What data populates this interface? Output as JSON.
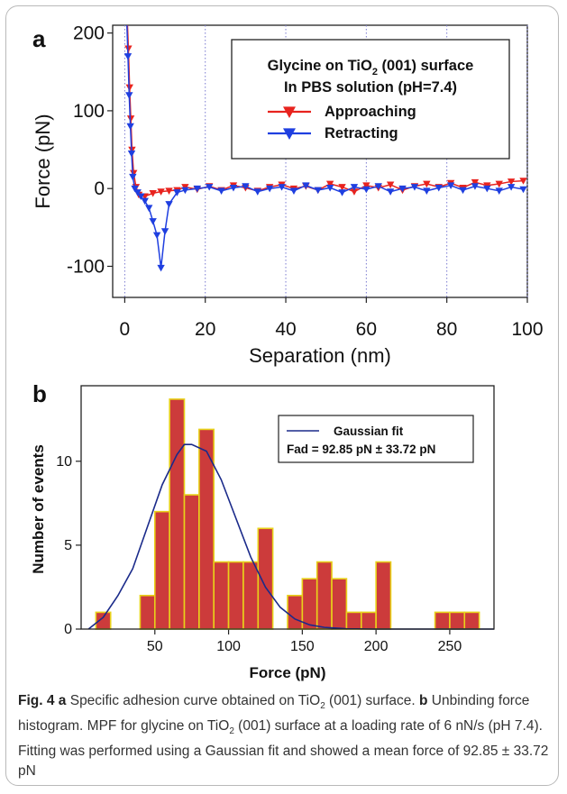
{
  "panel_a": {
    "label": "a",
    "legend_title_line1_pre": "Glycine on TiO",
    "legend_title_line1_sub": "2",
    "legend_title_line1_post": " (001) surface",
    "legend_title_line2": "In PBS solution (pH=7.4)"
  },
  "panel_b": {
    "label": "b",
    "legend_fit": "Gaussian fit",
    "legend_value": "Fad = 92.85 pN ± 33.72 pN"
  },
  "caption": {
    "fig_label": "Fig. 4",
    "a_label": "a",
    "t1": " Specific adhesion curve obtained on TiO",
    "t1_sub": "2",
    "t2": " (001) surface. ",
    "b_label": "b",
    "t3": " Unbinding force histogram. MPF for glycine on TiO",
    "t3_sub": "2",
    "t4": " (001) surface at a loading rate of 6 nN/s (pH 7.4). Fitting was performed using a Gaussian fit and showed a mean force of 92.85 ± 33.72 pN"
  },
  "colors": {
    "approach": "#e8231e",
    "retract": "#1f3fe0",
    "bar_fill": "#cc3b3b",
    "bar_edge": "#e8d21a",
    "fit_line": "#1a2a8a"
  },
  "chart_data": [
    {
      "type": "scatter",
      "xlabel": "Separation (nm)",
      "ylabel": "Force (pN)",
      "xlim": [
        -3,
        100
      ],
      "ylim": [
        -140,
        210
      ],
      "xticks": [
        0,
        20,
        40,
        60,
        80,
        100
      ],
      "yticks": [
        -100,
        0,
        100,
        200
      ],
      "grid": "vertical dotted",
      "legend_position": "top-right",
      "series": [
        {
          "name": "Approaching",
          "marker": "triangle-down",
          "x": [
            0.6,
            0.9,
            1.2,
            1.5,
            1.8,
            2.2,
            2.8,
            3.5,
            5,
            7,
            9,
            11,
            13,
            15,
            18,
            21,
            24,
            27,
            30,
            33,
            36,
            39,
            42,
            45,
            48,
            51,
            54,
            57,
            60,
            63,
            66,
            69,
            72,
            75,
            78,
            81,
            84,
            87,
            90,
            93,
            96,
            99
          ],
          "y": [
            220,
            180,
            130,
            90,
            50,
            20,
            2,
            -8,
            -10,
            -6,
            -4,
            -3,
            -2,
            2,
            -1,
            3,
            -2,
            4,
            1,
            -3,
            2,
            5,
            0,
            3,
            -2,
            6,
            2,
            -4,
            4,
            1,
            5,
            -2,
            3,
            6,
            2,
            7,
            1,
            8,
            4,
            6,
            9,
            10
          ]
        },
        {
          "name": "Retracting",
          "marker": "triangle-down",
          "x": [
            0.5,
            0.8,
            1.1,
            1.4,
            1.7,
            2.0,
            2.5,
            3.2,
            4.0,
            5.0,
            6.0,
            7.0,
            8.0,
            9.0,
            10.0,
            11.0,
            13,
            15,
            18,
            21,
            24,
            27,
            30,
            33,
            36,
            39,
            42,
            45,
            48,
            51,
            54,
            57,
            60,
            63,
            66,
            69,
            72,
            75,
            78,
            81,
            84,
            87,
            90,
            93,
            96,
            99
          ],
          "y": [
            215,
            170,
            120,
            80,
            45,
            15,
            0,
            -5,
            -10,
            -16,
            -25,
            -42,
            -60,
            -102,
            -55,
            -20,
            -5,
            -2,
            0,
            2,
            -3,
            1,
            3,
            -4,
            0,
            2,
            -3,
            4,
            -2,
            1,
            -5,
            2,
            -1,
            3,
            -4,
            0,
            2,
            -3,
            1,
            4,
            -2,
            3,
            0,
            -3,
            2,
            -1
          ]
        }
      ]
    },
    {
      "type": "bar",
      "xlabel": "Force (pN)",
      "ylabel": "Number of events",
      "xlim": [
        0,
        280
      ],
      "ylim": [
        0,
        14.5
      ],
      "xticks": [
        50,
        100,
        150,
        200,
        250
      ],
      "yticks": [
        0,
        5,
        10
      ],
      "grid": "none",
      "legend_position": "top-right",
      "bin_width": 10,
      "bin_starts": [
        10,
        40,
        50,
        60,
        70,
        80,
        90,
        100,
        110,
        120,
        140,
        150,
        160,
        170,
        180,
        190,
        200,
        240,
        250,
        260
      ],
      "values": [
        1,
        2,
        7,
        13.7,
        8,
        11.9,
        4,
        4,
        4,
        6,
        2,
        3,
        4,
        3,
        1,
        1,
        4,
        1,
        1,
        1
      ],
      "series": [
        {
          "name": "Gaussian fit",
          "type": "line",
          "x": [
            5,
            15,
            25,
            35,
            45,
            55,
            65,
            70,
            75,
            85,
            95,
            105,
            115,
            125,
            135,
            145,
            155,
            165,
            180,
            200,
            280
          ],
          "y": [
            0,
            0.7,
            2.0,
            3.6,
            6.1,
            8.6,
            10.4,
            11.0,
            11.0,
            10.6,
            8.9,
            6.6,
            4.3,
            2.5,
            1.3,
            0.6,
            0.25,
            0.1,
            0.02,
            0.0,
            0.0
          ]
        }
      ]
    }
  ]
}
